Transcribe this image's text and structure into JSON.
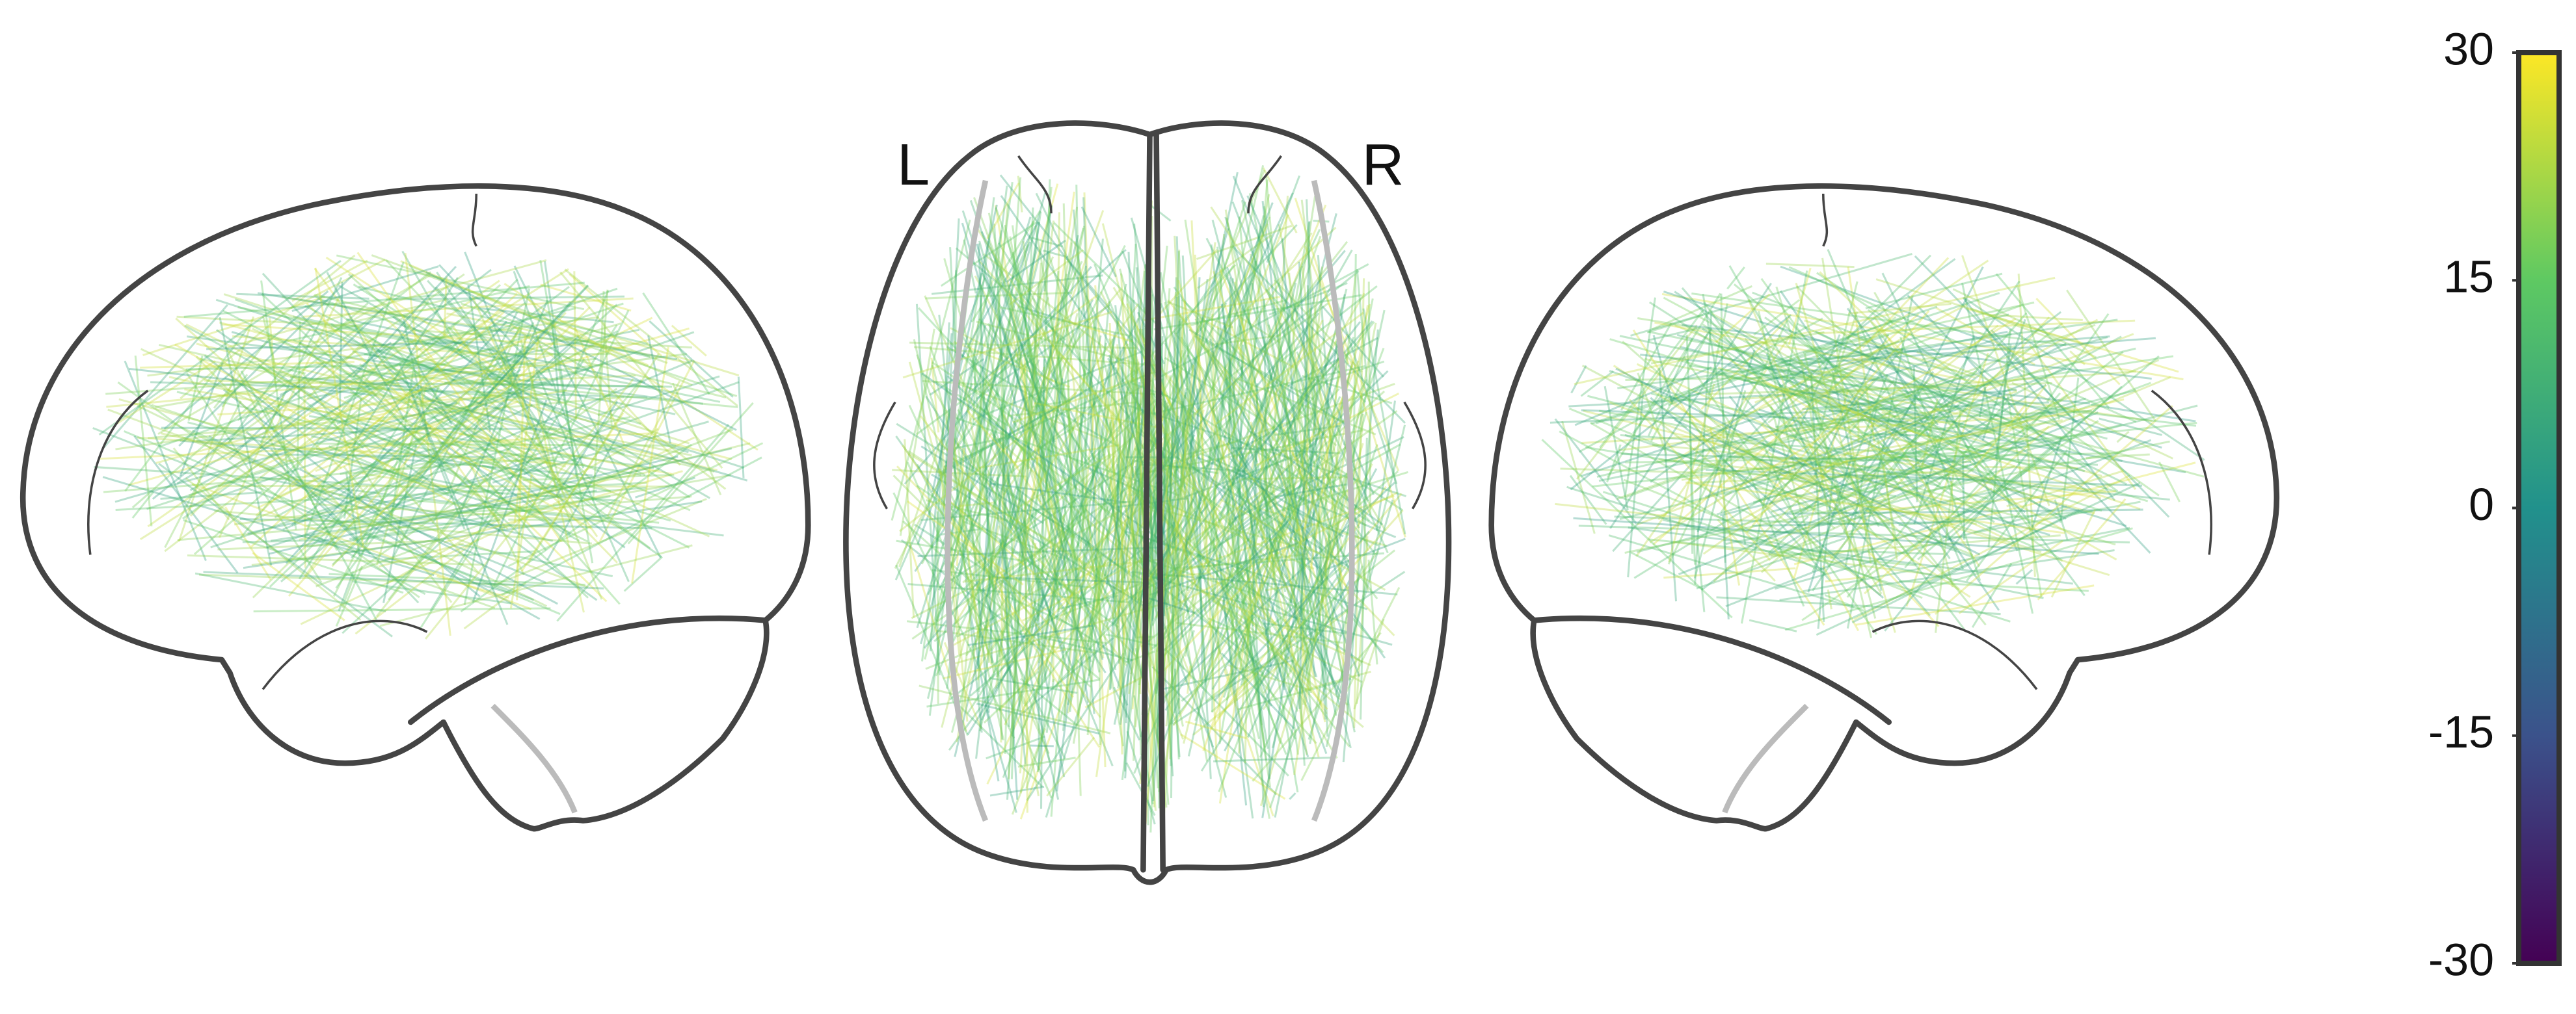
{
  "chart_data": {
    "type": "connectome",
    "labels": [
      "L",
      "R"
    ],
    "colorbar": {
      "ylim": [
        -30,
        30
      ],
      "yticks": [
        30,
        15,
        0,
        -15,
        -30
      ],
      "colors": [
        "#440154",
        "#3b528b",
        "#21918c",
        "#5ec962",
        "#fde725"
      ]
    }
  }
}
